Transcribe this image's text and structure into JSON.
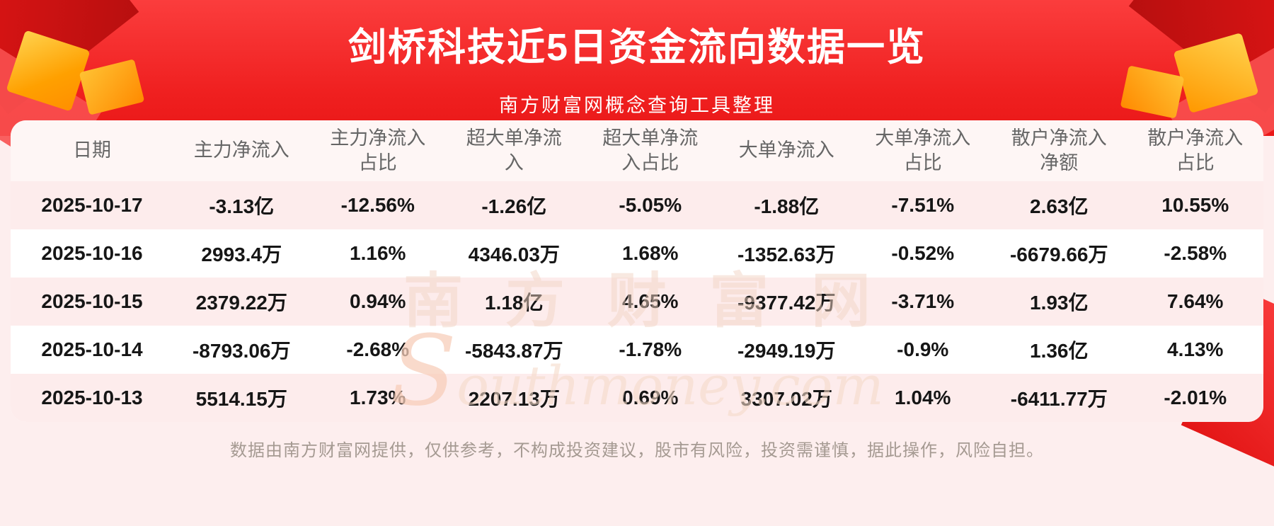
{
  "page": {
    "title": "剑桥科技近5日资金流向数据一览",
    "subtitle": "南方财富网概念查询工具整理",
    "disclaimer": "数据由南方财富网提供，仅供参考，不构成投资建议，股市有风险，投资需谨慎，据此操作，风险自担。",
    "watermark": {
      "cn": "南方财富网",
      "en": "Southmoney.com"
    },
    "colors": {
      "banner_red": "#ef1f1f",
      "page_pink": "#fdeeee",
      "row_stripe": "#fdecec",
      "header_text": "#666666",
      "body_text": "#161616",
      "gold_accent": "#ffa000"
    }
  },
  "table": {
    "header_display": [
      "日期",
      "主力净流入",
      "主力净流入\n占比",
      "超大单净流\n入",
      "超大单净流\n入占比",
      "大单净流入",
      "大单净流入\n占比",
      "散户净流入\n净额",
      "散户净流入\n占比"
    ]
  },
  "chart_data": {
    "type": "table",
    "title": "剑桥科技近5日资金流向数据一览",
    "columns": [
      "日期",
      "主力净流入",
      "主力净流入占比",
      "超大单净流入",
      "超大单净流入占比",
      "大单净流入",
      "大单净流入占比",
      "散户净流入净额",
      "散户净流入占比"
    ],
    "rows": [
      [
        "2025-10-17",
        "-3.13亿",
        "-12.56%",
        "-1.26亿",
        "-5.05%",
        "-1.88亿",
        "-7.51%",
        "2.63亿",
        "10.55%"
      ],
      [
        "2025-10-16",
        "2993.4万",
        "1.16%",
        "4346.03万",
        "1.68%",
        "-1352.63万",
        "-0.52%",
        "-6679.66万",
        "-2.58%"
      ],
      [
        "2025-10-15",
        "2379.22万",
        "0.94%",
        "1.18亿",
        "4.65%",
        "-9377.42万",
        "-3.71%",
        "1.93亿",
        "7.64%"
      ],
      [
        "2025-10-14",
        "-8793.06万",
        "-2.68%",
        "-5843.87万",
        "-1.78%",
        "-2949.19万",
        "-0.9%",
        "1.36亿",
        "4.13%"
      ],
      [
        "2025-10-13",
        "5514.15万",
        "1.73%",
        "2207.13万",
        "0.69%",
        "3307.02万",
        "1.04%",
        "-6411.77万",
        "-2.01%"
      ]
    ]
  }
}
